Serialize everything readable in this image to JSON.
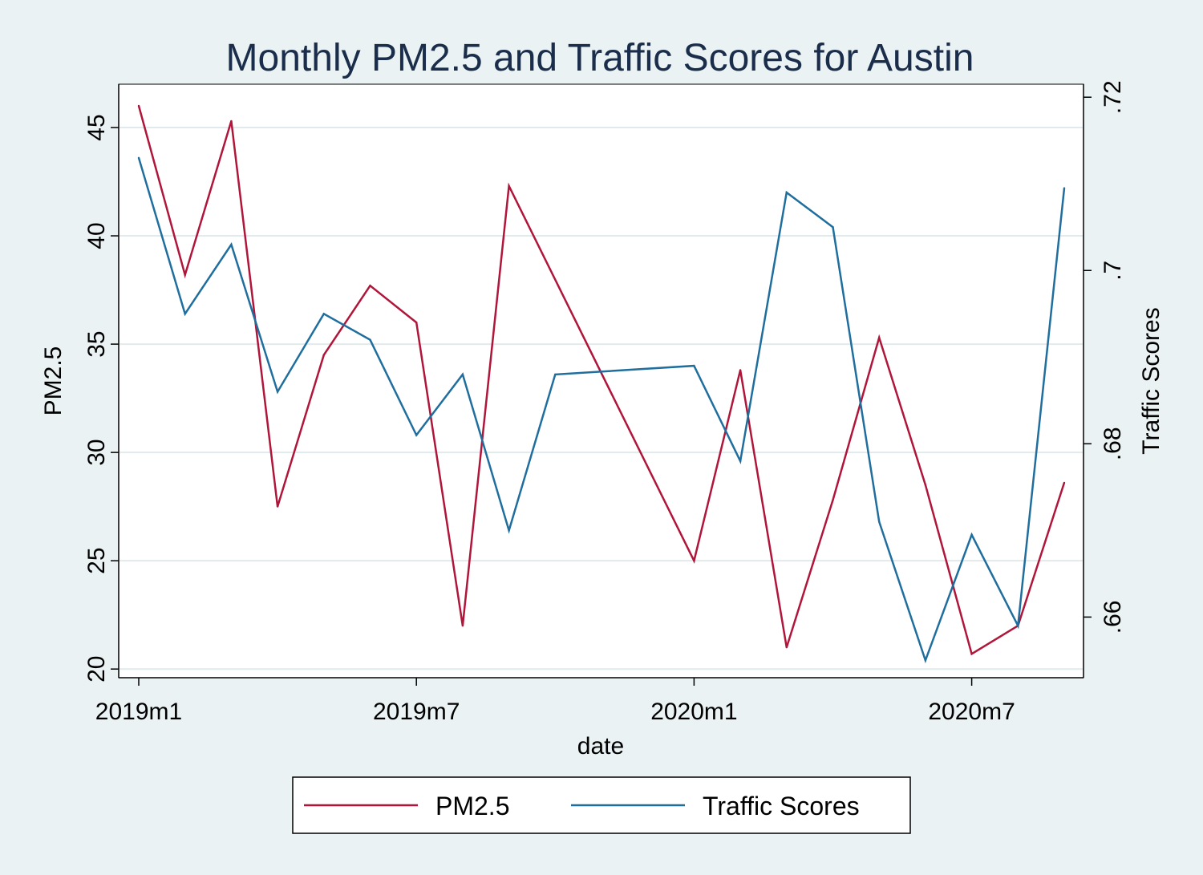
{
  "chart_data": {
    "type": "line",
    "title": "Monthly PM2.5 and Traffic Scores for Austin",
    "xlabel": "date",
    "ylabel_left": "PM2.5",
    "ylabel_right": "Traffic Scores",
    "x": [
      "2019m1",
      "2019m2",
      "2019m3",
      "2019m4",
      "2019m5",
      "2019m6",
      "2019m7",
      "2019m8",
      "2019m9",
      "2019m10",
      "2019m11",
      "2019m12",
      "2020m1",
      "2020m2",
      "2020m3",
      "2020m4",
      "2020m5",
      "2020m6",
      "2020m7",
      "2020m8",
      "2020m9"
    ],
    "x_ticks": [
      "2019m1",
      "2019m7",
      "2020m1",
      "2020m7"
    ],
    "ylim_left": [
      19.6,
      47
    ],
    "ylim_right": [
      0.653,
      0.7215
    ],
    "yticks_left": [
      "20",
      "25",
      "30",
      "35",
      "40",
      "45"
    ],
    "yticks_right": [
      ".66",
      ".68",
      ".7",
      ".72"
    ],
    "grid": true,
    "legend_position": "bottom",
    "series": [
      {
        "name": "PM2.5",
        "axis": "left",
        "color": "#b0153a",
        "values": [
          46.0,
          38.2,
          45.3,
          27.5,
          34.5,
          37.7,
          36.0,
          22.0,
          42.3,
          null,
          null,
          null,
          25.0,
          33.8,
          21.0,
          27.8,
          35.3,
          28.5,
          20.7,
          22.0,
          28.6
        ]
      },
      {
        "name": "Traffic Scores",
        "axis": "right",
        "color": "#1f6e9e",
        "values": [
          0.713,
          0.695,
          0.703,
          0.686,
          0.695,
          0.692,
          0.681,
          0.688,
          0.67,
          0.688,
          null,
          null,
          0.689,
          0.678,
          0.709,
          0.705,
          0.671,
          0.655,
          0.6695,
          0.659,
          0.7095
        ]
      }
    ]
  }
}
